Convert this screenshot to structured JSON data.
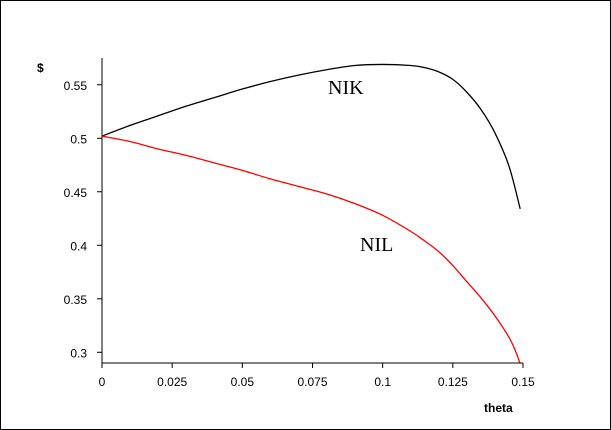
{
  "chart_data": {
    "type": "line",
    "title": "",
    "xlabel": "theta",
    "ylabel": "$",
    "xlim": [
      0,
      0.15
    ],
    "ylim": [
      0.29,
      0.575
    ],
    "x_ticks": [
      0,
      0.025,
      0.05,
      0.075,
      0.1,
      0.125,
      0.15
    ],
    "x_tick_labels": [
      "0",
      "0.025",
      "0.05",
      "0.075",
      "0.1",
      "0.125",
      "0.15"
    ],
    "y_ticks": [
      0.3,
      0.35,
      0.4,
      0.45,
      0.5,
      0.55
    ],
    "y_tick_labels": [
      "0.3",
      "0.35",
      "0.4",
      "0.45",
      "0.5",
      "0.55"
    ],
    "grid": false,
    "legend": "none",
    "series": [
      {
        "name": "NIK",
        "color": "#000000",
        "x": [
          0,
          0.01,
          0.02,
          0.03,
          0.04,
          0.05,
          0.06,
          0.07,
          0.08,
          0.09,
          0.1,
          0.11,
          0.115,
          0.12,
          0.125,
          0.13,
          0.135,
          0.14,
          0.145,
          0.149
        ],
        "y": [
          0.502,
          0.512,
          0.521,
          0.53,
          0.538,
          0.546,
          0.553,
          0.559,
          0.564,
          0.568,
          0.569,
          0.568,
          0.566,
          0.562,
          0.555,
          0.543,
          0.527,
          0.505,
          0.474,
          0.434
        ]
      },
      {
        "name": "NIL",
        "color": "#ff0000",
        "x": [
          0,
          0.01,
          0.02,
          0.03,
          0.04,
          0.05,
          0.06,
          0.07,
          0.08,
          0.09,
          0.1,
          0.11,
          0.115,
          0.12,
          0.125,
          0.13,
          0.135,
          0.14,
          0.145,
          0.1475,
          0.149
        ],
        "y": [
          0.502,
          0.497,
          0.49,
          0.484,
          0.477,
          0.47,
          0.462,
          0.455,
          0.448,
          0.439,
          0.428,
          0.413,
          0.404,
          0.394,
          0.381,
          0.366,
          0.351,
          0.334,
          0.314,
          0.3,
          0.289
        ]
      }
    ],
    "annotations": [
      {
        "text": "NIK",
        "series": 0
      },
      {
        "text": "NIL",
        "series": 1
      }
    ]
  }
}
